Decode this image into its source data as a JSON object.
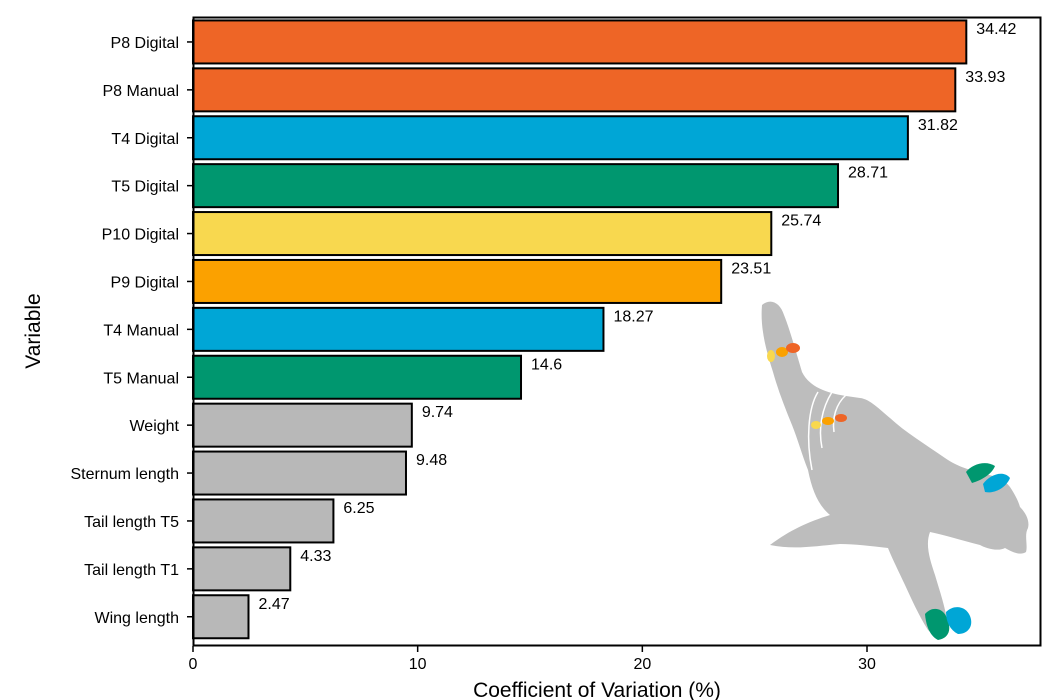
{
  "chart_data": {
    "type": "bar",
    "orientation": "horizontal",
    "title": "",
    "xlabel": "Coefficient of Variation (%)",
    "ylabel": "Variable",
    "xlim": [
      0,
      37.7
    ],
    "xticks": [
      0,
      10,
      20,
      30
    ],
    "grid": false,
    "categories": [
      "P8 Digital",
      "P8 Manual",
      "T4 Digital",
      "T5 Digital",
      "P10 Digital",
      "P9 Digital",
      "T4 Manual",
      "T5 Manual",
      "Weight",
      "Sternum length",
      "Tail length T5",
      "Tail length T1",
      "Wing length"
    ],
    "values": [
      34.42,
      33.93,
      31.82,
      28.71,
      25.74,
      23.51,
      18.27,
      14.6,
      9.74,
      9.48,
      6.25,
      4.33,
      2.47
    ],
    "value_labels": [
      "34.42",
      "33.93",
      "31.82",
      "28.71",
      "25.74",
      "23.51",
      "18.27",
      "14.6",
      "9.74",
      "9.48",
      "6.25",
      "4.33",
      "2.47"
    ],
    "bar_colors": [
      "#ee6526",
      "#ee6526",
      "#00a6d6",
      "#00976f",
      "#f8d84f",
      "#fba100",
      "#00a6d6",
      "#00976f",
      "#b8b8b8",
      "#b8b8b8",
      "#b8b8b8",
      "#b8b8b8",
      "#b8b8b8"
    ]
  },
  "illustration": {
    "icon": "bird-wing-silhouette-icon",
    "body_color": "#bdbdbd",
    "marker_colors": [
      "#f8d84f",
      "#fba100",
      "#ee6526",
      "#00976f",
      "#00a6d6"
    ]
  }
}
